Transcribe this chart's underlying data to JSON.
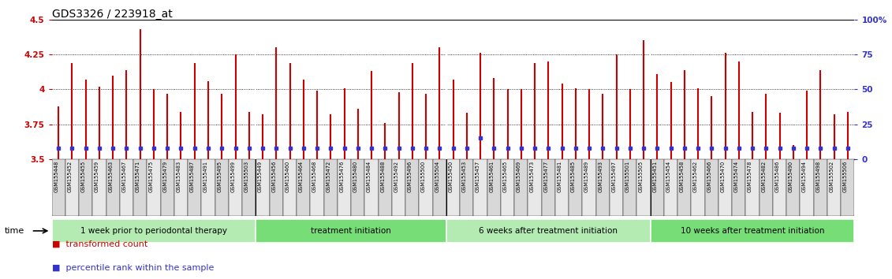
{
  "title": "GDS3326 / 223918_at",
  "ylim": [
    3.5,
    4.5
  ],
  "yticks_left": [
    3.5,
    3.75,
    4.0,
    4.25,
    4.5
  ],
  "ytick_labels_left": [
    "3.5",
    "3.75",
    "4",
    "4.25",
    "4.5"
  ],
  "ytick_labels_right": [
    "0",
    "25",
    "50",
    "75",
    "100%"
  ],
  "grid_lines": [
    3.75,
    4.0,
    4.25
  ],
  "samples": [
    "GSM155448",
    "GSM155452",
    "GSM155455",
    "GSM155459",
    "GSM155463",
    "GSM155467",
    "GSM155471",
    "GSM155475",
    "GSM155479",
    "GSM155483",
    "GSM155487",
    "GSM155491",
    "GSM155495",
    "GSM155499",
    "GSM155503",
    "GSM155449",
    "GSM155456",
    "GSM155460",
    "GSM155464",
    "GSM155468",
    "GSM155472",
    "GSM155476",
    "GSM155480",
    "GSM155484",
    "GSM155488",
    "GSM155492",
    "GSM155496",
    "GSM155500",
    "GSM155504",
    "GSM155450",
    "GSM155453",
    "GSM155457",
    "GSM155461",
    "GSM155465",
    "GSM155469",
    "GSM155473",
    "GSM155477",
    "GSM155481",
    "GSM155485",
    "GSM155489",
    "GSM155493",
    "GSM155497",
    "GSM155501",
    "GSM155505",
    "GSM155451",
    "GSM155454",
    "GSM155458",
    "GSM155462",
    "GSM155466",
    "GSM155470",
    "GSM155474",
    "GSM155478",
    "GSM155482",
    "GSM155486",
    "GSM155490",
    "GSM155494",
    "GSM155498",
    "GSM155502",
    "GSM155506"
  ],
  "values": [
    3.88,
    4.19,
    4.07,
    4.02,
    4.1,
    4.14,
    4.43,
    4.0,
    3.97,
    3.84,
    4.19,
    4.06,
    3.97,
    4.25,
    3.84,
    3.82,
    4.3,
    4.19,
    4.07,
    3.99,
    3.82,
    4.01,
    3.86,
    4.13,
    3.76,
    3.98,
    4.19,
    3.97,
    4.3,
    4.07,
    3.83,
    4.26,
    4.08,
    4.0,
    4.0,
    4.19,
    4.2,
    4.04,
    4.01,
    4.0,
    3.97,
    4.25,
    4.0,
    4.35,
    4.11,
    4.05,
    4.14,
    4.01,
    3.95,
    4.26,
    4.2,
    3.84,
    3.97,
    3.83,
    3.6,
    3.99,
    4.14,
    3.82,
    3.84
  ],
  "percentile_ranks": [
    8,
    8,
    8,
    8,
    8,
    8,
    8,
    8,
    8,
    8,
    8,
    8,
    8,
    8,
    8,
    8,
    8,
    8,
    8,
    8,
    8,
    8,
    8,
    8,
    8,
    8,
    8,
    8,
    8,
    8,
    8,
    15,
    8,
    8,
    8,
    8,
    8,
    8,
    8,
    8,
    8,
    8,
    8,
    8,
    8,
    8,
    8,
    8,
    8,
    8,
    8,
    8,
    8,
    8,
    8,
    8,
    8,
    8,
    8
  ],
  "group_starts": [
    0,
    15,
    29,
    44
  ],
  "group_ends": [
    15,
    29,
    44,
    59
  ],
  "group_labels": [
    "1 week prior to periodontal therapy",
    "treatment initiation",
    "6 weeks after treatment initiation",
    "10 weeks after treatment initiation"
  ],
  "group_colors": [
    "#b3ebb3",
    "#77dd77",
    "#b3ebb3",
    "#77dd77"
  ],
  "bar_color": "#cc0000",
  "dot_color": "#3333cc",
  "bg_color": "#ffffff",
  "tick_color_left": "#cc0000",
  "tick_color_right": "#3333cc",
  "title_fontsize": 10,
  "tick_fontsize": 7.5,
  "bar_linewidth": 1.5
}
